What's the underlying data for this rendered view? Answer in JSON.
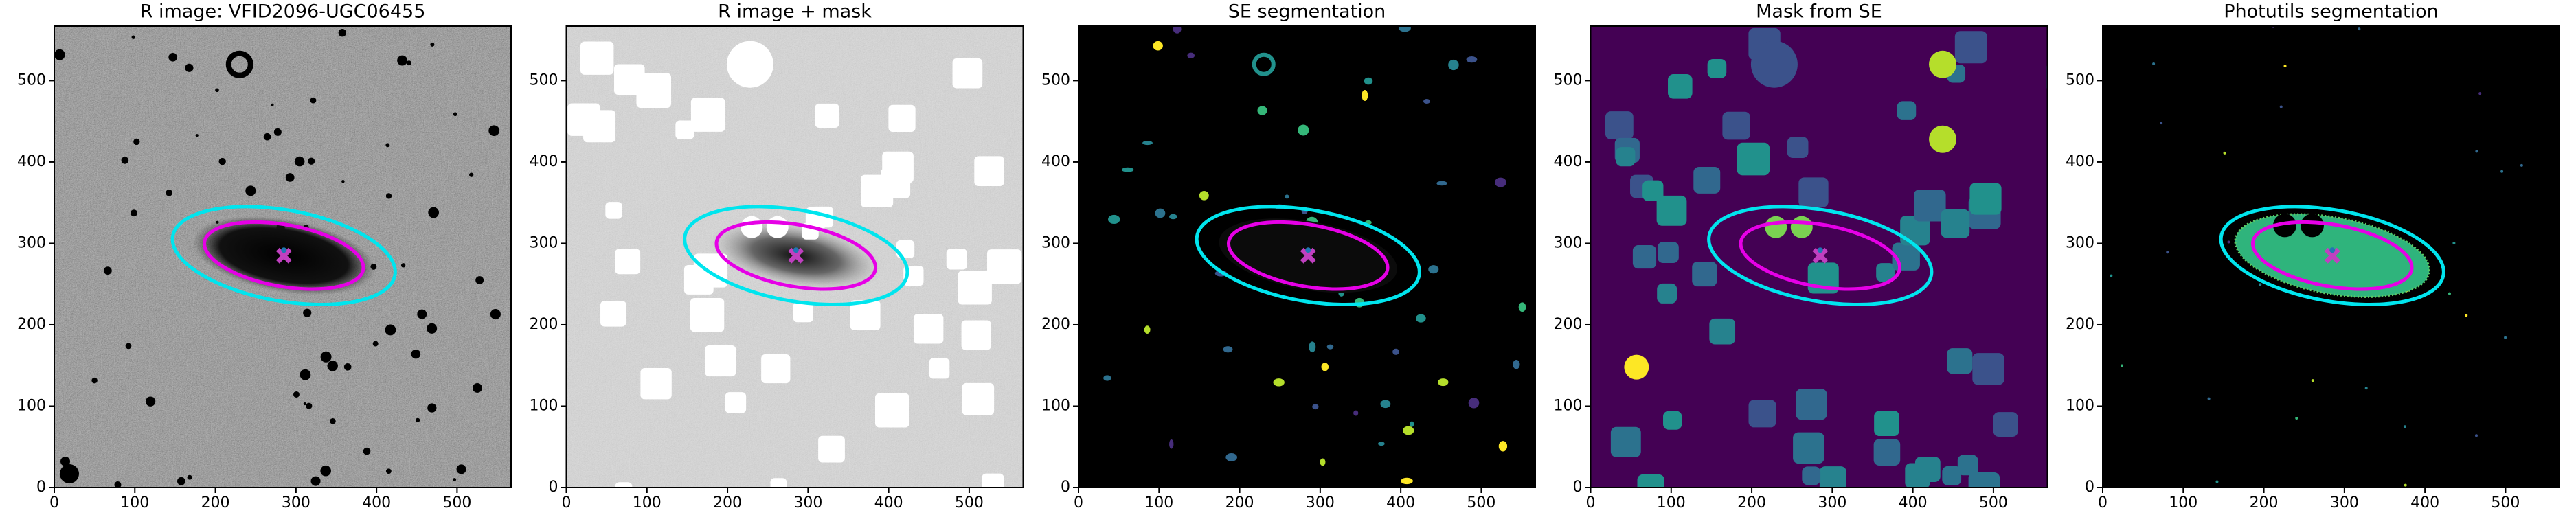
{
  "chart_data": [
    {
      "type": "image",
      "title": "R image: VFID2096-UGC06455",
      "background": "#7a7a7a",
      "xlim": [
        0,
        567
      ],
      "ylim": [
        0,
        567
      ],
      "xticks": [
        0,
        100,
        200,
        300,
        400,
        500
      ],
      "yticks": [
        0,
        100,
        200,
        300,
        400,
        500
      ],
      "ellipses": [
        {
          "color": "#00e5ee",
          "xy": [
            285,
            285
          ],
          "a": 140,
          "b": 56,
          "angle": -10
        },
        {
          "color": "#e600e6",
          "xy": [
            285,
            285
          ],
          "a": 100,
          "b": 38,
          "angle": -10
        }
      ],
      "marker": {
        "x": 285,
        "y": 285,
        "color": "#c040c0"
      }
    },
    {
      "type": "image",
      "title": "R image + mask",
      "background": "#d9d9d9",
      "xlim": [
        0,
        567
      ],
      "ylim": [
        0,
        567
      ],
      "xticks": [
        0,
        100,
        200,
        300,
        400,
        500
      ],
      "yticks": [
        0,
        100,
        200,
        300,
        400,
        500
      ],
      "ellipses": [
        {
          "color": "#00e5ee",
          "xy": [
            285,
            285
          ],
          "a": 140,
          "b": 56,
          "angle": -10
        },
        {
          "color": "#e600e6",
          "xy": [
            285,
            285
          ],
          "a": 100,
          "b": 38,
          "angle": -10
        }
      ],
      "marker": {
        "x": 285,
        "y": 285,
        "color": "#c040c0"
      }
    },
    {
      "type": "image",
      "title": "SE segmentation",
      "background": "#000000",
      "xlim": [
        0,
        567
      ],
      "ylim": [
        0,
        567
      ],
      "xticks": [
        0,
        100,
        200,
        300,
        400,
        500
      ],
      "yticks": [
        0,
        100,
        200,
        300,
        400,
        500
      ],
      "ellipses": [
        {
          "color": "#00e5ee",
          "xy": [
            285,
            285
          ],
          "a": 140,
          "b": 56,
          "angle": -10
        },
        {
          "color": "#e600e6",
          "xy": [
            285,
            285
          ],
          "a": 100,
          "b": 38,
          "angle": -10
        }
      ],
      "marker": {
        "x": 285,
        "y": 285,
        "color": "#c040c0"
      }
    },
    {
      "type": "image",
      "title": "Mask from SE",
      "background": "#440154",
      "xlim": [
        0,
        567
      ],
      "ylim": [
        0,
        567
      ],
      "xticks": [
        0,
        100,
        200,
        300,
        400,
        500
      ],
      "yticks": [
        0,
        100,
        200,
        300,
        400,
        500
      ],
      "ellipses": [
        {
          "color": "#00e5ee",
          "xy": [
            285,
            285
          ],
          "a": 140,
          "b": 56,
          "angle": -10
        },
        {
          "color": "#e600e6",
          "xy": [
            285,
            285
          ],
          "a": 100,
          "b": 38,
          "angle": -10
        }
      ],
      "marker": {
        "x": 285,
        "y": 285,
        "color": "#c040c0"
      }
    },
    {
      "type": "image",
      "title": "Photutils segmentation",
      "background": "#000000",
      "xlim": [
        0,
        567
      ],
      "ylim": [
        0,
        567
      ],
      "xticks": [
        0,
        100,
        200,
        300,
        400,
        500
      ],
      "yticks": [
        0,
        100,
        200,
        300,
        400,
        500
      ],
      "ellipses": [
        {
          "color": "#00e5ee",
          "xy": [
            285,
            285
          ],
          "a": 140,
          "b": 56,
          "angle": -10
        },
        {
          "color": "#e600e6",
          "xy": [
            285,
            285
          ],
          "a": 100,
          "b": 38,
          "angle": -10
        }
      ],
      "marker": {
        "x": 285,
        "y": 285,
        "color": "#c040c0"
      }
    }
  ]
}
